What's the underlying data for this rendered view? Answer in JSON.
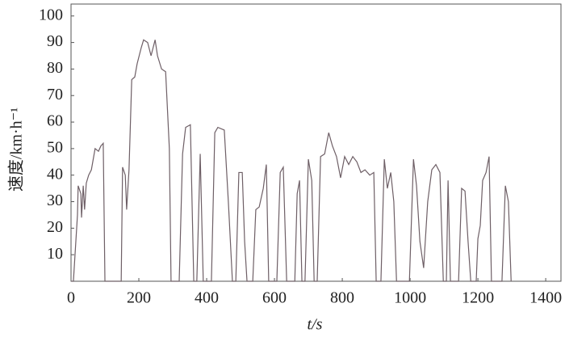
{
  "chart_data": {
    "type": "line",
    "x_label": "t/s",
    "y_label": "速度/km·h⁻¹",
    "x": [
      0,
      7,
      19,
      21,
      29,
      31,
      36,
      40,
      45,
      52,
      60,
      71,
      81,
      88,
      95,
      100,
      148,
      152,
      160,
      164,
      171,
      179,
      188,
      195,
      207,
      214,
      226,
      236,
      248,
      255,
      267,
      279,
      290,
      295,
      319,
      329,
      338,
      352,
      362,
      371,
      381,
      390,
      414,
      424,
      433,
      452,
      464,
      476,
      486,
      495,
      505,
      512,
      519,
      536,
      545,
      555,
      567,
      576,
      583,
      607,
      617,
      626,
      636,
      660,
      667,
      674,
      681,
      690,
      700,
      710,
      717,
      726,
      736,
      748,
      760,
      771,
      783,
      795,
      807,
      819,
      831,
      843,
      855,
      867,
      881,
      893,
      900,
      914,
      924,
      933,
      943,
      952,
      960,
      998,
      1010,
      1019,
      1029,
      1040,
      1052,
      1064,
      1076,
      1088,
      1098,
      1107,
      1112,
      1119,
      1143,
      1152,
      1162,
      1171,
      1179,
      1195,
      1200,
      1207,
      1214,
      1224,
      1233,
      1240,
      1271,
      1281,
      1290,
      1298
    ],
    "series": [
      {
        "color": "#6e5f66",
        "values": [
          0,
          0,
          25,
          36,
          33,
          24,
          36,
          27,
          37,
          40,
          42,
          50,
          49,
          51,
          52,
          0,
          0,
          43,
          40,
          27,
          42,
          76,
          77,
          82,
          88,
          91,
          90,
          85,
          91,
          85,
          80,
          79,
          50,
          0,
          0,
          48,
          58,
          59,
          0,
          0,
          48,
          0,
          0,
          56,
          58,
          57,
          30,
          0,
          0,
          41,
          41,
          15,
          0,
          0,
          27,
          28,
          35,
          44,
          0,
          0,
          41,
          43,
          0,
          0,
          33,
          38,
          0,
          0,
          46,
          38,
          0,
          0,
          47,
          48,
          56,
          51,
          47,
          39,
          47,
          44,
          47,
          45,
          41,
          42,
          40,
          41,
          0,
          0,
          46,
          35,
          41,
          30,
          0,
          0,
          46,
          36,
          15,
          5,
          30,
          42,
          44,
          41,
          0,
          0,
          38,
          0,
          0,
          35,
          34,
          15,
          0,
          0,
          16,
          21,
          38,
          41,
          47,
          0,
          0,
          36,
          30,
          0
        ]
      }
    ],
    "xlim": [
      0,
      1445
    ],
    "ylim": [
      0,
      104.5
    ],
    "xticks": [
      0,
      200,
      400,
      600,
      800,
      1000,
      1200,
      1400
    ],
    "yticks": [
      10,
      20,
      30,
      40,
      50,
      60,
      70,
      80,
      90,
      100
    ]
  }
}
